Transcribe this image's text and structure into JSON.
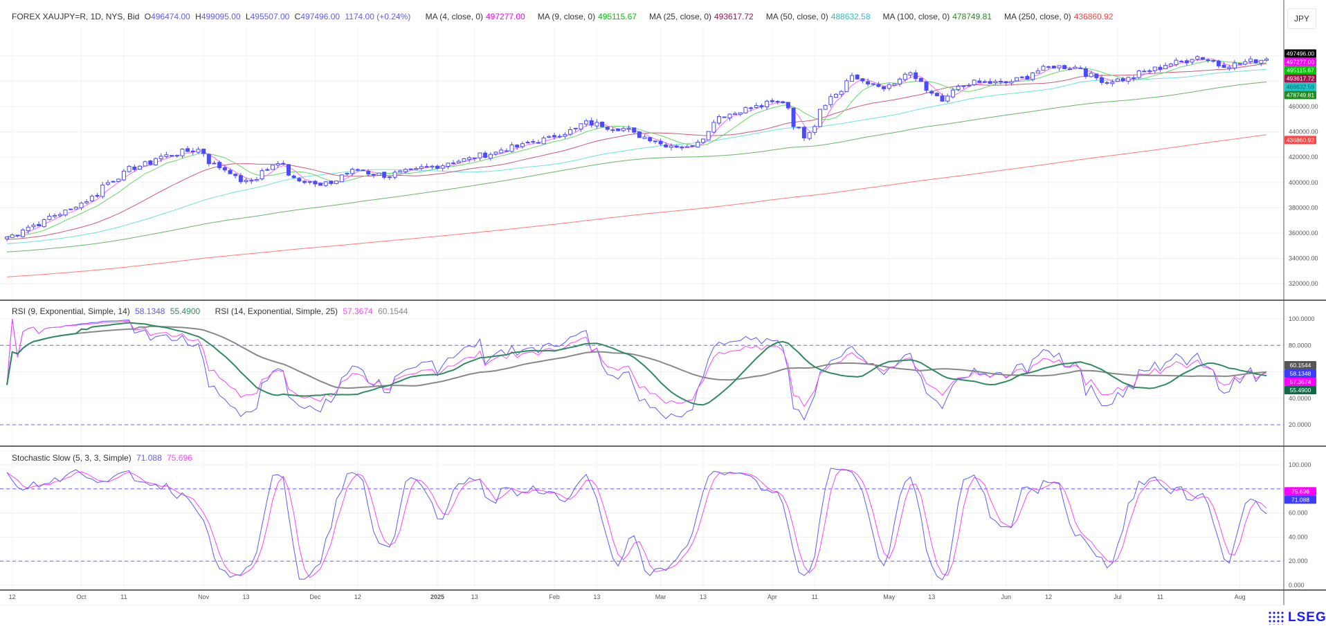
{
  "header": {
    "symbol": "FOREX XAUJPY=R, 1D, NYS, Bid",
    "open_label": "O",
    "open": "496474.00",
    "high_label": "H",
    "high": "499095.00",
    "low_label": "L",
    "low": "495507.00",
    "close_label": "C",
    "close": "497496.00",
    "change": "1174.00 (+0.24%)",
    "currency_button": "JPY"
  },
  "moving_averages": [
    {
      "label": "MA (4, close, 0)",
      "value": "497277.00",
      "period": 4,
      "color": "#ff00ff",
      "tag_text": "#ffffff"
    },
    {
      "label": "MA (9, close, 0)",
      "value": "495115.67",
      "period": 9,
      "color": "#00c800",
      "tag_text": "#ffffff"
    },
    {
      "label": "MA (25, close, 0)",
      "value": "493617.72",
      "period": 25,
      "color": "#a01450",
      "tag_text": "#ffffff"
    },
    {
      "label": "MA (50, close, 0)",
      "value": "488632.58",
      "period": 50,
      "color": "#1fc8c8",
      "tag_text": "#0a6060"
    },
    {
      "label": "MA (100, close, 0)",
      "value": "478749.81",
      "period": 100,
      "color": "#1e8c1e",
      "tag_text": "#ffffff"
    },
    {
      "label": "MA (250, close, 0)",
      "value": "436860.92",
      "period": 250,
      "color": "#ff4444",
      "tag_text": "#ffffff"
    }
  ],
  "rsi": {
    "legend1": "RSI (9, Exponential, Simple, 14)",
    "rsi9": "58.1348",
    "rsi9_signal": "55.4900",
    "legend2": "RSI (14, Exponential, Simple, 25)",
    "rsi14": "57.3674",
    "rsi14_signal": "60.1544",
    "colors": {
      "rsi9": "#5a5aff",
      "rsi9_signal": "#2e8b5f",
      "rsi14": "#ff44ff",
      "rsi14_signal": "#888888"
    },
    "levels": [
      20,
      80
    ],
    "ticks": [
      "20.0000",
      "40.0000",
      "80.0000",
      "100.0000"
    ]
  },
  "stochastic": {
    "legend": "Stochastic Slow (5, 3, 3, Simple)",
    "k": "71.088",
    "d": "75.696",
    "colors": {
      "k": "#5a5aff",
      "d": "#ff44ff"
    },
    "levels": [
      20,
      80
    ],
    "ticks": [
      "0.000",
      "20.000",
      "40.000",
      "60.000",
      "100.000"
    ]
  },
  "price_axis": {
    "ticks": [
      "320000.00",
      "340000.00",
      "360000.00",
      "380000.00",
      "400000.00",
      "420000.00",
      "440000.00",
      "460000.00"
    ],
    "last_price_tag": "497496.00"
  },
  "date_axis": [
    {
      "label": "12",
      "date": "2024-09-12"
    },
    {
      "label": "Oct",
      "date": "2024-10-01"
    },
    {
      "label": "11",
      "date": "2024-10-11"
    },
    {
      "label": "Nov",
      "date": "2024-11-01"
    },
    {
      "label": "13",
      "date": "2024-11-13"
    },
    {
      "label": "Dec",
      "date": "2024-12-02"
    },
    {
      "label": "12",
      "date": "2024-12-12"
    },
    {
      "label": "2025",
      "date": "2025-01-02"
    },
    {
      "label": "13",
      "date": "2025-01-13"
    },
    {
      "label": "Feb",
      "date": "2025-02-03"
    },
    {
      "label": "13",
      "date": "2025-02-13"
    },
    {
      "label": "Mar",
      "date": "2025-03-03"
    },
    {
      "label": "13",
      "date": "2025-03-13"
    },
    {
      "label": "Apr",
      "date": "2025-04-01"
    },
    {
      "label": "11",
      "date": "2025-04-11"
    },
    {
      "label": "May",
      "date": "2025-05-01"
    },
    {
      "label": "13",
      "date": "2025-05-13"
    },
    {
      "label": "Jun",
      "date": "2025-06-02"
    },
    {
      "label": "12",
      "date": "2025-06-12"
    },
    {
      "label": "Jul",
      "date": "2025-07-01"
    },
    {
      "label": "11",
      "date": "2025-07-11"
    },
    {
      "label": "Aug",
      "date": "2025-08-01"
    }
  ],
  "chart_data": {
    "type": "candlestick",
    "ylim": [
      310000,
      505000
    ],
    "candle_color": "#4a4aff",
    "approx_closes": [
      [
        "2024-09-11",
        357000
      ],
      [
        "2024-09-12",
        358300
      ],
      [
        "2024-10-01",
        383700
      ],
      [
        "2024-10-11",
        407000
      ],
      [
        "2024-10-22",
        420500
      ],
      [
        "2024-10-31",
        426000
      ],
      [
        "2024-11-05",
        414000
      ],
      [
        "2024-11-13",
        400000
      ],
      [
        "2024-11-22",
        416000
      ],
      [
        "2024-11-26",
        404000
      ],
      [
        "2024-12-03",
        397000
      ],
      [
        "2024-12-12",
        410500
      ],
      [
        "2024-12-20",
        405000
      ],
      [
        "2024-12-31",
        412000
      ],
      [
        "2025-01-13",
        420500
      ],
      [
        "2025-01-24",
        429000
      ],
      [
        "2025-02-03",
        437000
      ],
      [
        "2025-02-11",
        447000
      ],
      [
        "2025-02-20",
        442500
      ],
      [
        "2025-03-03",
        430500
      ],
      [
        "2025-03-10",
        427000
      ],
      [
        "2025-03-18",
        452500
      ],
      [
        "2025-03-28",
        460500
      ],
      [
        "2025-04-03",
        464000
      ],
      [
        "2025-04-09",
        437000
      ],
      [
        "2025-04-16",
        467400
      ],
      [
        "2025-04-22",
        482700
      ],
      [
        "2025-04-30",
        474000
      ],
      [
        "2025-05-07",
        485000
      ],
      [
        "2025-05-15",
        464000
      ],
      [
        "2025-05-22",
        478700
      ],
      [
        "2025-06-02",
        478700
      ],
      [
        "2025-06-13",
        492000
      ],
      [
        "2025-06-20",
        490800
      ],
      [
        "2025-06-27",
        479400
      ],
      [
        "2025-07-03",
        482000
      ],
      [
        "2025-07-11",
        490800
      ],
      [
        "2025-07-22",
        499500
      ],
      [
        "2025-07-28",
        492800
      ],
      [
        "2025-08-01",
        493500
      ],
      [
        "2025-08-08",
        497496
      ]
    ]
  },
  "brand": "LSEG"
}
